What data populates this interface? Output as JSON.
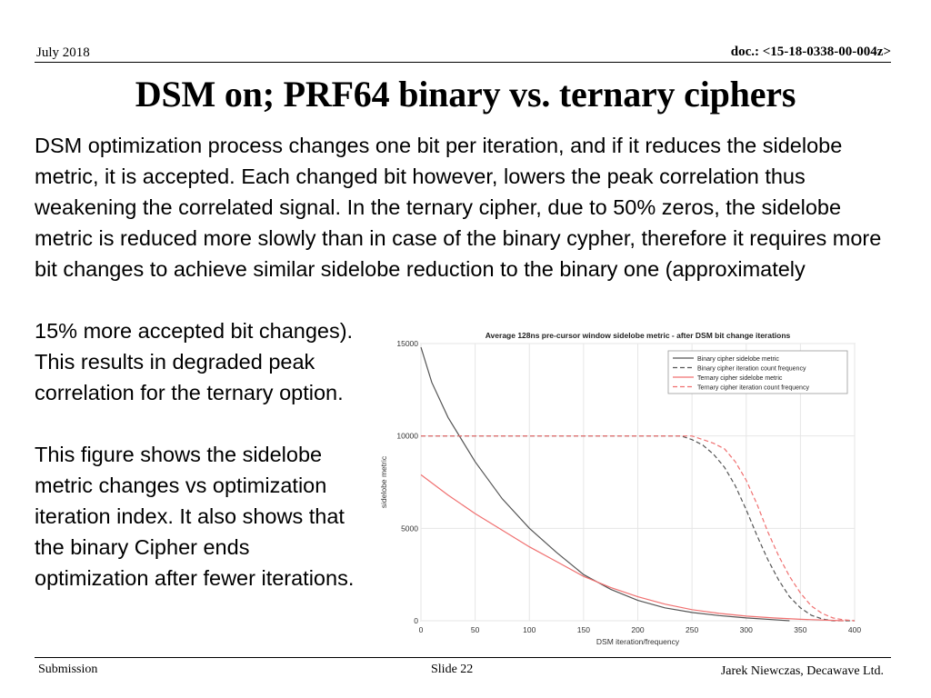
{
  "header": {
    "date": "July 2018",
    "doc": "doc.: <15-18-0338-00-004z>"
  },
  "title": "DSM on; PRF64 binary vs. ternary ciphers",
  "body_text": "DSM optimization process changes one bit per iteration, and if it reduces the sidelobe metric, it is accepted. Each changed bit however, lowers the peak correlation thus weakening the correlated signal. In the ternary cipher, due to 50% zeros, the sidelobe metric is reduced more slowly than in case of the binary cypher, therefore it requires more bit changes to achieve similar sidelobe reduction to the binary one (approximately",
  "side_text": {
    "para1": "15% more accepted bit changes). This results in degraded peak correlation for the ternary option.",
    "para2": "This figure shows the sidelobe metric changes vs optimization iteration index. It also shows that the binary Cipher ends optimization after fewer iterations."
  },
  "footer": {
    "left": "Submission",
    "center": "Slide 22",
    "right": "Jarek Niewczas,  Decawave Ltd."
  },
  "chart_data": {
    "type": "line",
    "title": "Average 128ns pre-cursor window sidelobe metric - after DSM bit change iterations",
    "xlabel": "DSM iteration/frequency",
    "ylabel": "sidelobe metric",
    "xlim": [
      0,
      400
    ],
    "ylim": [
      0,
      15000
    ],
    "xticks": [
      "0",
      "50",
      "100",
      "150",
      "200",
      "250",
      "300",
      "350",
      "400"
    ],
    "yticks": [
      "0",
      "5000",
      "10000",
      "15000"
    ],
    "grid": true,
    "legend_position": "top-right",
    "series": [
      {
        "name": "Binary cipher sidelobe metric",
        "color": "#555555",
        "dash": false,
        "x": [
          0,
          10,
          25,
          50,
          75,
          100,
          125,
          150,
          175,
          200,
          225,
          250,
          275,
          300,
          325,
          340
        ],
        "y": [
          14800,
          12900,
          11000,
          8600,
          6600,
          5000,
          3700,
          2500,
          1700,
          1100,
          700,
          450,
          280,
          150,
          60,
          0
        ]
      },
      {
        "name": "Binary cipher iteration count frequency",
        "color": "#555555",
        "dash": true,
        "x": [
          0,
          240,
          250,
          260,
          270,
          280,
          290,
          300,
          310,
          320,
          330,
          340,
          350,
          360,
          370,
          380,
          390,
          400
        ],
        "y": [
          10000,
          10000,
          9800,
          9500,
          9000,
          8300,
          7300,
          6000,
          4600,
          3300,
          2200,
          1300,
          700,
          300,
          100,
          0,
          0,
          0
        ]
      },
      {
        "name": "Ternary cipher sidelobe metric",
        "color": "#f07070",
        "dash": false,
        "x": [
          0,
          25,
          50,
          75,
          100,
          125,
          150,
          175,
          200,
          225,
          250,
          275,
          300,
          325,
          350,
          375,
          390
        ],
        "y": [
          7900,
          6800,
          5800,
          4900,
          4000,
          3200,
          2400,
          1800,
          1300,
          900,
          600,
          400,
          250,
          150,
          80,
          30,
          0
        ]
      },
      {
        "name": "Ternary cipher iteration count frequency",
        "color": "#f07070",
        "dash": true,
        "x": [
          0,
          250,
          260,
          270,
          280,
          290,
          300,
          310,
          320,
          330,
          340,
          350,
          360,
          370,
          380,
          390,
          400
        ],
        "y": [
          10000,
          10000,
          9800,
          9600,
          9300,
          8600,
          7600,
          6300,
          4800,
          3500,
          2400,
          1500,
          800,
          400,
          150,
          50,
          0
        ]
      }
    ]
  }
}
